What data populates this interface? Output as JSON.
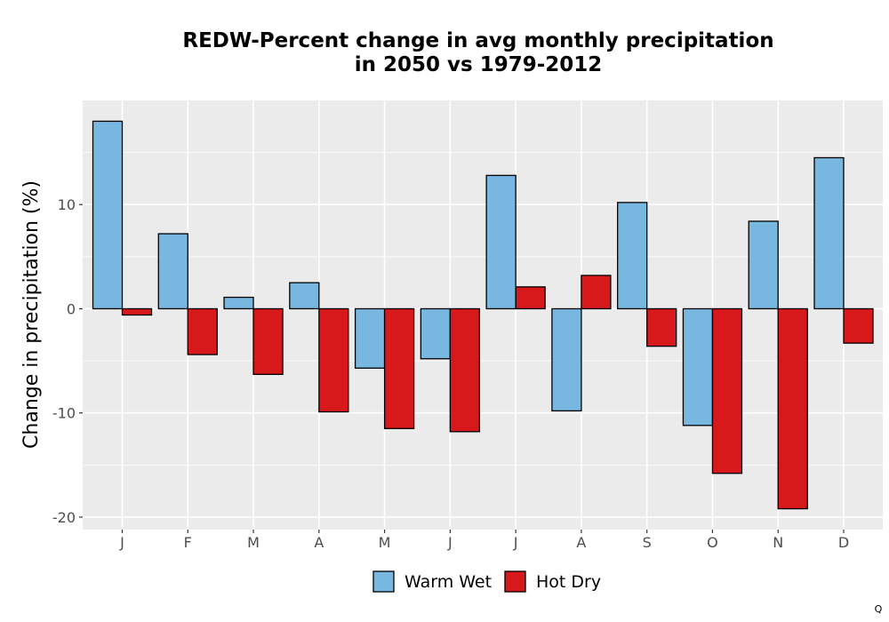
{
  "chart_data": {
    "type": "bar",
    "title_line1": "REDW-Percent change in avg monthly precipitation",
    "title_line2": "in 2050 vs 1979-2012",
    "xlabel": "",
    "ylabel": "Change in precipitation (%)",
    "categories": [
      "J",
      "F",
      "M",
      "A",
      "M",
      "J",
      "J",
      "A",
      "S",
      "O",
      "N",
      "D"
    ],
    "series": [
      {
        "name": "Warm Wet",
        "color": "#77b7e0",
        "values": [
          18.0,
          7.2,
          1.1,
          2.5,
          -5.7,
          -4.8,
          12.8,
          -9.8,
          10.2,
          -11.2,
          8.4,
          14.5
        ]
      },
      {
        "name": "Hot Dry",
        "color": "#d7191c",
        "values": [
          -0.6,
          -4.4,
          -6.3,
          -9.9,
          -11.5,
          -11.8,
          2.1,
          3.2,
          -3.6,
          -15.8,
          -19.2,
          -3.3
        ]
      }
    ],
    "ylim": [
      -21.2,
      20.0
    ],
    "yticks": [
      -20,
      -10,
      0,
      10
    ],
    "ytick_labels": [
      "-20",
      "-10",
      "0",
      "10"
    ],
    "grid": true,
    "legend_position": "bottom",
    "background": "#ebebeb",
    "corner_mark": "Q"
  }
}
